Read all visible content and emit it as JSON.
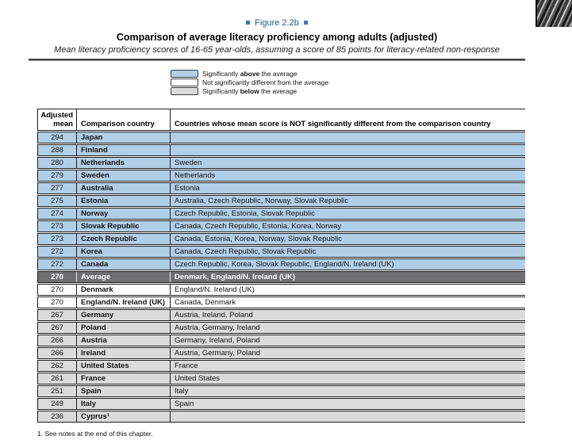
{
  "page": {
    "figure_label": "Figure 2.2b",
    "title": "Comparison of average literacy proficiency among adults (adjusted)",
    "subtitle": "Mean literacy proficiency scores of 16-65 year-olds, assuming a score of 85 points for literacy-related non-response",
    "footnote": "1. See notes at the end of this chapter."
  },
  "colors": {
    "above": "#B1CEE7",
    "not_different": "#FFFFFF",
    "below": "#DBDBDB",
    "average_row": "#6F6F71",
    "figure_accent": "#3B78B6",
    "figure_text": "#205A7D"
  },
  "legend": {
    "items": [
      {
        "pre": "Significantly ",
        "bold": "above",
        "post": " the average",
        "swatch": "above"
      },
      {
        "pre": "Not significantly different from the average",
        "bold": "",
        "post": "",
        "swatch": "not_different"
      },
      {
        "pre": "Significantly ",
        "bold": "below",
        "post": " the average",
        "swatch": "below"
      }
    ]
  },
  "table": {
    "headers": {
      "adjusted_mean": "Adjusted\nmean",
      "comparison_country": "Comparison country",
      "not_different_countries": "Countries whose mean score is NOT significantly different from the comparison country"
    },
    "rows": [
      {
        "mean": "294",
        "country": "Japan",
        "not_different": "",
        "status": "above"
      },
      {
        "mean": "288",
        "country": "Finland",
        "not_different": "",
        "status": "above"
      },
      {
        "mean": "280",
        "country": "Netherlands",
        "not_different": "Sweden",
        "status": "above"
      },
      {
        "mean": "279",
        "country": "Sweden",
        "not_different": "Netherlands",
        "status": "above"
      },
      {
        "mean": "277",
        "country": "Australia",
        "not_different": "Estonia",
        "status": "above"
      },
      {
        "mean": "275",
        "country": "Estonia",
        "not_different": "Australia, Czech Republic, Norway, Slovak Republic",
        "status": "above"
      },
      {
        "mean": "274",
        "country": "Norway",
        "not_different": "Czech Republic, Estonia, Slovak Republic",
        "status": "above"
      },
      {
        "mean": "273",
        "country": "Slovak Republic",
        "not_different": "Canada, Czech Republic, Estonia, Korea, Norway",
        "status": "above"
      },
      {
        "mean": "273",
        "country": "Czech Republic",
        "not_different": "Canada, Estonia, Korea, Norway, Slovak Republic",
        "status": "above"
      },
      {
        "mean": "272",
        "country": "Korea",
        "not_different": "Canada, Czech Republic, Slovak Republic",
        "status": "above"
      },
      {
        "mean": "272",
        "country": "Canada",
        "not_different": "Czech Republic, Korea, Slovak Republic, England/N. Ireland (UK)",
        "status": "above"
      },
      {
        "mean": "270",
        "country": "Average",
        "not_different": "Denmark, England/N. Ireland (UK)",
        "status": "average"
      },
      {
        "mean": "270",
        "country": "Denmark",
        "not_different": "England/N. Ireland (UK)",
        "status": "not_different"
      },
      {
        "mean": "270",
        "country": "England/N. Ireland (UK)",
        "not_different": "Canada, Denmark",
        "status": "not_different"
      },
      {
        "mean": "267",
        "country": "Germany",
        "not_different": "Austria, Ireland, Poland",
        "status": "below"
      },
      {
        "mean": "267",
        "country": "Poland",
        "not_different": "Austria, Germany, Ireland",
        "status": "below"
      },
      {
        "mean": "266",
        "country": "Austria",
        "not_different": "Germany, Ireland, Poland",
        "status": "below"
      },
      {
        "mean": "266",
        "country": "Ireland",
        "not_different": "Austria, Germany, Poland",
        "status": "below"
      },
      {
        "mean": "262",
        "country": "United States",
        "not_different": "France",
        "status": "below"
      },
      {
        "mean": "261",
        "country": "France",
        "not_different": "United States",
        "status": "below"
      },
      {
        "mean": "251",
        "country": "Spain",
        "not_different": "Italy",
        "status": "below"
      },
      {
        "mean": "249",
        "country": "Italy",
        "not_different": "Spain",
        "status": "below"
      },
      {
        "mean": "236",
        "country": "Cyprus¹",
        "not_different": "",
        "status": "below"
      }
    ]
  }
}
